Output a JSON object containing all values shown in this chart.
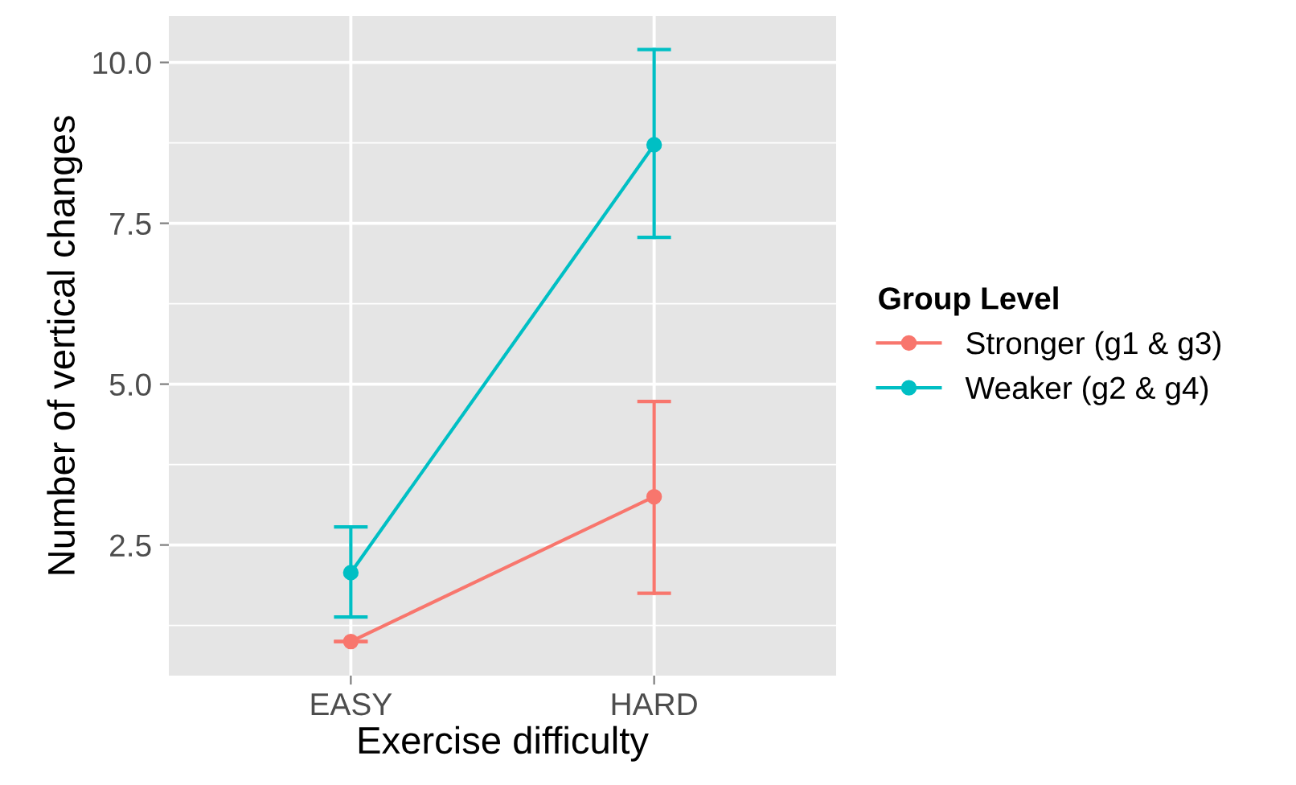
{
  "chart_data": {
    "type": "line",
    "xlabel": "Exercise difficulty",
    "ylabel": "Number of vertical changes",
    "legend_title": "Group Level",
    "categories": [
      "EASY",
      "HARD"
    ],
    "series": [
      {
        "name": "Stronger (g1 & g3)",
        "color": "#f8766d",
        "values": [
          1.0,
          3.25
        ],
        "errors": [
          [
            1.0,
            1.0
          ],
          [
            1.75,
            4.73
          ]
        ]
      },
      {
        "name": "Weaker (g2 & g4)",
        "color": "#00bfc4",
        "values": [
          2.07,
          8.72
        ],
        "errors": [
          [
            1.38,
            2.78
          ],
          [
            7.28,
            10.2
          ]
        ]
      }
    ],
    "ylim": [
      0.47,
      10.72
    ],
    "yticks": [
      {
        "value": 2.5,
        "label": "2.5"
      },
      {
        "value": 5.0,
        "label": "5.0"
      },
      {
        "value": 7.5,
        "label": "7.5"
      },
      {
        "value": 10.0,
        "label": "10.0"
      }
    ],
    "grid": true,
    "legend": "right",
    "marker": "circle",
    "line_style": "solid"
  }
}
